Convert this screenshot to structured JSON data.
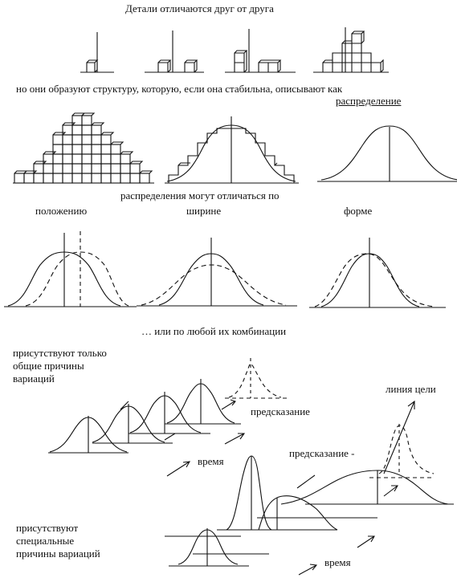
{
  "texts": {
    "title": "Детали отличаются друг от друга",
    "structure_caption": "но они образуют структуру, которую, если она стабильна, описывают как",
    "distribution_word": "распределение",
    "differ_caption": "распределения могут отличаться по",
    "by_location": "положению",
    "by_width": "ширине",
    "by_shape": "форме",
    "or_combination": "… или по любой их комбинации",
    "common_causes": [
      "присутствуют только",
      "общие причины",
      "вариаций"
    ],
    "prediction_1": "предсказание",
    "target_line": "линия цели",
    "time_1": "время",
    "prediction_2": "предсказание -",
    "special_causes": [
      "присутствуют",
      "специальные",
      "причины вариаций"
    ],
    "time_2": "время"
  }
}
